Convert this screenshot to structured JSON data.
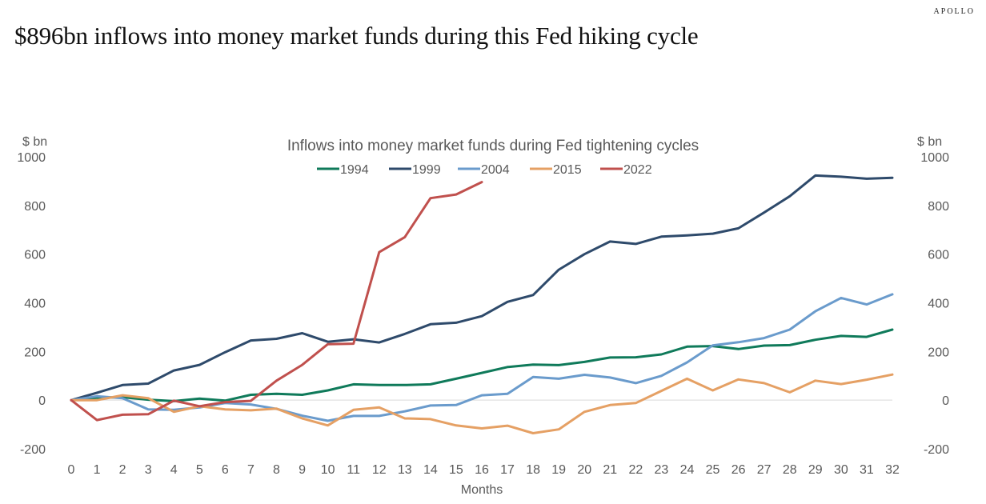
{
  "brand": "APOLLO",
  "headline": "$896bn inflows into money market funds during this Fed hiking cycle",
  "chart_data": {
    "type": "line",
    "title": "Inflows into money market funds during Fed tightening cycles",
    "xlabel": "Months",
    "ylabel_left": "$ bn",
    "ylabel_right": "$ bn",
    "xlim": [
      0,
      32
    ],
    "ylim": [
      -200,
      1000
    ],
    "yticks": [
      -200,
      0,
      200,
      400,
      600,
      800,
      1000
    ],
    "ytick_labels": [
      "-200",
      "0",
      "200",
      "400",
      "600",
      "800",
      "1000"
    ],
    "x": [
      0,
      1,
      2,
      3,
      4,
      5,
      6,
      7,
      8,
      9,
      10,
      11,
      12,
      13,
      14,
      15,
      16,
      17,
      18,
      19,
      20,
      21,
      22,
      23,
      24,
      25,
      26,
      27,
      28,
      29,
      30,
      31,
      32
    ],
    "xtick_labels": [
      "0",
      "1",
      "2",
      "3",
      "4",
      "5",
      "6",
      "7",
      "8",
      "9",
      "10",
      "11",
      "12",
      "13",
      "14",
      "15",
      "16",
      "17",
      "18",
      "19",
      "20",
      "21",
      "22",
      "23",
      "24",
      "25",
      "26",
      "27",
      "28",
      "29",
      "30",
      "31",
      "32"
    ],
    "grid": false,
    "zero_line": true,
    "legend_position": "top-center",
    "series": [
      {
        "name": "1994",
        "color": "#0f7a5a",
        "values": [
          0,
          10,
          12,
          2,
          -4,
          6,
          -2,
          22,
          26,
          22,
          40,
          65,
          62,
          62,
          65,
          88,
          112,
          136,
          146,
          144,
          157,
          175,
          176,
          188,
          220,
          222,
          210,
          224,
          226,
          248,
          264,
          260,
          290
        ]
      },
      {
        "name": "1999",
        "color": "#2e4a6b",
        "values": [
          0,
          30,
          62,
          68,
          122,
          145,
          197,
          245,
          252,
          275,
          240,
          250,
          237,
          272,
          312,
          318,
          345,
          404,
          432,
          536,
          600,
          652,
          642,
          672,
          677,
          684,
          706,
          771,
          838,
          923,
          918,
          910,
          914
        ]
      },
      {
        "name": "2004",
        "color": "#6a9bcc",
        "values": [
          0,
          16,
          8,
          -38,
          -40,
          -30,
          -12,
          -18,
          -36,
          -64,
          -85,
          -65,
          -65,
          -46,
          -22,
          -20,
          20,
          26,
          95,
          88,
          104,
          93,
          70,
          100,
          155,
          225,
          238,
          255,
          290,
          365,
          420,
          393,
          435
        ]
      },
      {
        "name": "2015",
        "color": "#e5a064",
        "values": [
          0,
          0,
          20,
          8,
          -48,
          -25,
          -38,
          -42,
          -35,
          -75,
          -104,
          -40,
          -30,
          -75,
          -78,
          -104,
          -116,
          -105,
          -136,
          -120,
          -48,
          -20,
          -12,
          38,
          88,
          40,
          85,
          70,
          32,
          80,
          66,
          84,
          105
        ]
      },
      {
        "name": "2022",
        "color": "#c0504d",
        "values": [
          0,
          -82,
          -60,
          -58,
          -2,
          -25,
          -8,
          -3,
          80,
          145,
          230,
          232,
          608,
          670,
          830,
          845,
          896
        ]
      }
    ]
  }
}
